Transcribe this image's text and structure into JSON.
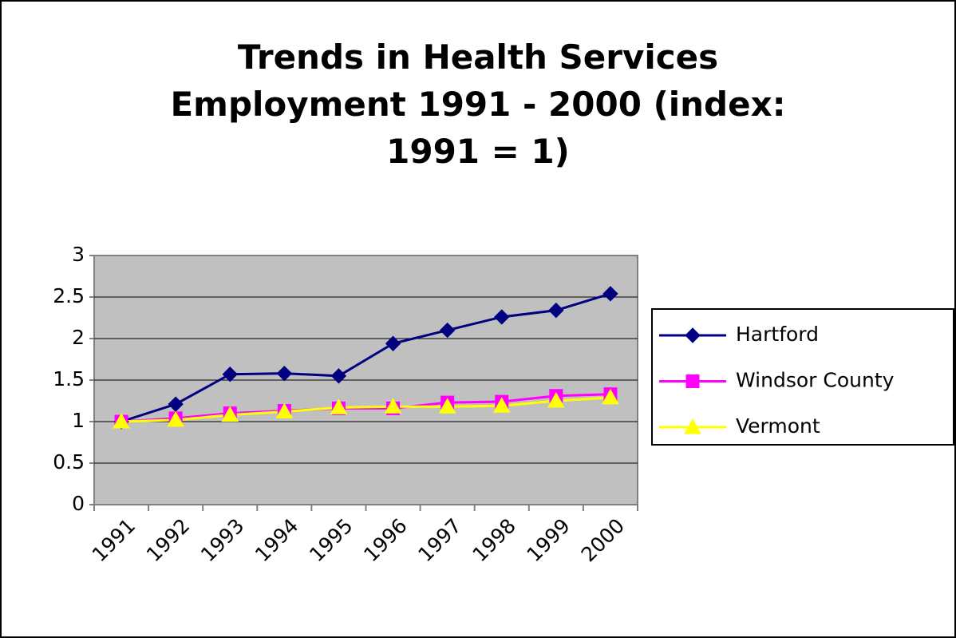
{
  "chart_data": {
    "type": "line",
    "title": "Trends in Health Services Employment 1991 - 2000 (index: 1991 = 1)",
    "categories": [
      "1991",
      "1992",
      "1993",
      "1994",
      "1995",
      "1996",
      "1997",
      "1998",
      "1999",
      "2000"
    ],
    "series": [
      {
        "name": "Hartford",
        "color": "#000080",
        "marker": "diamond",
        "values": [
          1,
          1.21,
          1.57,
          1.58,
          1.55,
          1.94,
          2.1,
          2.26,
          2.34,
          2.54
        ]
      },
      {
        "name": "Windsor County",
        "color": "#ff00ff",
        "marker": "square",
        "values": [
          1,
          1.04,
          1.1,
          1.13,
          1.16,
          1.16,
          1.23,
          1.24,
          1.31,
          1.33
        ]
      },
      {
        "name": "Vermont",
        "color": "#ffff00",
        "marker": "triangle",
        "values": [
          1,
          1.02,
          1.08,
          1.12,
          1.17,
          1.18,
          1.18,
          1.19,
          1.25,
          1.29
        ]
      }
    ],
    "ylim": [
      0,
      3
    ],
    "yticks": [
      0,
      0.5,
      1,
      1.5,
      2,
      2.5,
      3
    ],
    "grid": true,
    "legend": "right"
  }
}
